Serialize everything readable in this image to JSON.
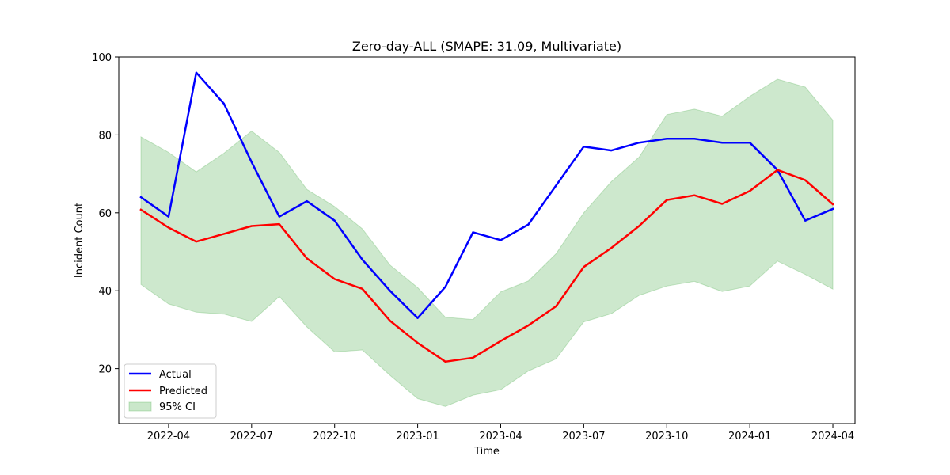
{
  "chart_data": {
    "type": "line",
    "title": "Zero-day-ALL (SMAPE: 31.09, Multivariate)",
    "xlabel": "Time",
    "ylabel": "Incident Count",
    "ylim": [
      5.9,
      100
    ],
    "xlim_months": [
      -0.8,
      25.8
    ],
    "x_months": [
      0,
      1,
      2,
      3,
      4,
      5,
      6,
      7,
      8,
      9,
      10,
      11,
      12,
      13,
      14,
      15,
      16,
      17,
      18,
      19,
      20,
      21,
      22,
      23,
      24,
      25
    ],
    "x_dates": [
      "2022-03",
      "2022-04",
      "2022-05",
      "2022-06",
      "2022-07",
      "2022-08",
      "2022-09",
      "2022-10",
      "2022-11",
      "2022-12",
      "2023-01",
      "2023-02",
      "2023-03",
      "2023-04",
      "2023-05",
      "2023-06",
      "2023-07",
      "2023-08",
      "2023-09",
      "2023-10",
      "2023-11",
      "2023-12",
      "2024-01",
      "2024-02",
      "2024-03",
      "2024-04"
    ],
    "x_ticks": [
      {
        "month": 1,
        "label": "2022-04"
      },
      {
        "month": 4,
        "label": "2022-07"
      },
      {
        "month": 7,
        "label": "2022-10"
      },
      {
        "month": 10,
        "label": "2023-01"
      },
      {
        "month": 13,
        "label": "2023-04"
      },
      {
        "month": 16,
        "label": "2023-07"
      },
      {
        "month": 19,
        "label": "2023-10"
      },
      {
        "month": 22,
        "label": "2024-01"
      },
      {
        "month": 25,
        "label": "2024-04"
      }
    ],
    "y_ticks": [
      20,
      40,
      60,
      80,
      100
    ],
    "series": [
      {
        "name": "Actual",
        "color": "#0000ff",
        "values": [
          64,
          59,
          96,
          88,
          73,
          59,
          63,
          58,
          48,
          40,
          33,
          41,
          55,
          53,
          57,
          67,
          77,
          76,
          78,
          79,
          79,
          78,
          78,
          71,
          58,
          61
        ]
      },
      {
        "name": "Predicted",
        "color": "#ff0000",
        "values": [
          60.8,
          56.2,
          52.6,
          54.6,
          56.6,
          57.1,
          48.3,
          43.0,
          40.5,
          32.3,
          26.6,
          21.8,
          22.8,
          27.1,
          31.1,
          36.0,
          46.1,
          51.0,
          56.6,
          63.3,
          64.5,
          62.3,
          65.6,
          71.0,
          68.4,
          62.2
        ]
      }
    ],
    "ci": {
      "name": "95% CI",
      "color": "#2ca02c",
      "upper": [
        79.5,
        75.5,
        70.5,
        75.3,
        81.0,
        75.5,
        66.0,
        61.6,
        55.9,
        46.6,
        40.8,
        33.2,
        32.6,
        39.7,
        42.5,
        49.5,
        60.0,
        68.0,
        74.3,
        85.2,
        86.6,
        84.8,
        89.9,
        94.3,
        92.3,
        83.8
      ],
      "lower": [
        41.6,
        36.6,
        34.5,
        34.0,
        32.1,
        38.5,
        30.7,
        24.3,
        24.8,
        18.3,
        12.3,
        10.3,
        13.2,
        14.6,
        19.4,
        22.5,
        32.0,
        34.1,
        38.8,
        41.2,
        42.4,
        39.8,
        41.2,
        47.6,
        44.2,
        40.4
      ]
    },
    "legend": {
      "position": "lower-left",
      "items": [
        "Actual",
        "Predicted",
        "95% CI"
      ]
    },
    "grid": false
  }
}
